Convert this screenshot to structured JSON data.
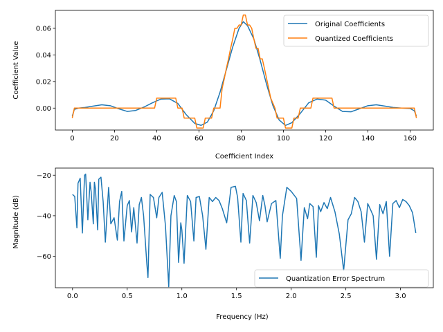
{
  "colors": {
    "blue": "#1f77b4",
    "orange": "#ff7f0e"
  },
  "chart_data": [
    {
      "type": "line",
      "xlabel": "Coefficient Index",
      "ylabel": "Coefficient Value",
      "xlim": [
        -8,
        171
      ],
      "ylim": [
        -0.0165,
        0.0735
      ],
      "xticks": [
        0,
        20,
        40,
        60,
        80,
        100,
        120,
        140,
        160
      ],
      "xtick_labels": [
        "0",
        "20",
        "40",
        "60",
        "80",
        "100",
        "120",
        "140",
        "160"
      ],
      "yticks": [
        0.0,
        0.02,
        0.04,
        0.06
      ],
      "ytick_labels": [
        "0.00",
        "0.02",
        "0.04",
        "0.06"
      ],
      "legend": {
        "placement": "top-right",
        "entries": [
          "Original Coefficients",
          "Quantized Coefficients"
        ]
      },
      "series": [
        {
          "name": "Original Coefficients",
          "color": "#1f77b4",
          "x": [
            0,
            1,
            3,
            6,
            10,
            14,
            18,
            22,
            26,
            30,
            34,
            38,
            42,
            46,
            50,
            54,
            58,
            61,
            64,
            67,
            70,
            73,
            76,
            79,
            81,
            83,
            86,
            89,
            92,
            95,
            98,
            101,
            104,
            108,
            112,
            116,
            120,
            124,
            128,
            132,
            136,
            140,
            144,
            148,
            152,
            156,
            160,
            162,
            163
          ],
          "y": [
            -0.006,
            -0.001,
            0.0,
            0.0005,
            0.0015,
            0.0025,
            0.0018,
            -0.0005,
            -0.0025,
            -0.0018,
            0.0008,
            0.004,
            0.0068,
            0.007,
            0.0035,
            -0.005,
            -0.0115,
            -0.013,
            -0.0105,
            -0.002,
            0.012,
            0.029,
            0.046,
            0.06,
            0.065,
            0.062,
            0.052,
            0.036,
            0.018,
            0.002,
            -0.009,
            -0.013,
            -0.011,
            -0.004,
            0.004,
            0.0068,
            0.006,
            0.0015,
            -0.0025,
            -0.0028,
            -0.0005,
            0.0018,
            0.0025,
            0.0015,
            0.0005,
            0.0,
            -0.0003,
            -0.002,
            -0.006
          ]
        },
        {
          "name": "Quantized Coefficients",
          "color": "#ff7f0e",
          "x": [
            0,
            1,
            39,
            40,
            49,
            50,
            52,
            53,
            55,
            56,
            58,
            59,
            62,
            63,
            66,
            67,
            70,
            71,
            72,
            73,
            74,
            75,
            76,
            77,
            78,
            79,
            80,
            81,
            82,
            83,
            84,
            85,
            86,
            87,
            88,
            89,
            90,
            91,
            93,
            94,
            96,
            97,
            100,
            101,
            104,
            105,
            107,
            108,
            110,
            111,
            113,
            114,
            123,
            124,
            162,
            163
          ],
          "y": [
            -0.0075,
            0.0,
            0.0,
            0.0075,
            0.0075,
            0.0,
            0.0,
            -0.0075,
            -0.0075,
            -0.0075,
            -0.0075,
            -0.015,
            -0.015,
            -0.0075,
            -0.0075,
            0.0,
            0.0,
            0.015,
            0.022,
            0.03,
            0.037,
            0.045,
            0.052,
            0.06,
            0.06,
            0.0625,
            0.0625,
            0.07,
            0.07,
            0.0625,
            0.0625,
            0.06,
            0.052,
            0.045,
            0.045,
            0.037,
            0.037,
            0.03,
            0.015,
            0.0075,
            0.0,
            -0.0075,
            -0.0075,
            -0.015,
            -0.015,
            -0.0075,
            -0.0075,
            0.0,
            0.0,
            0.0,
            0.0,
            0.0075,
            0.0075,
            0.0,
            0.0,
            -0.0075
          ]
        }
      ]
    },
    {
      "type": "line",
      "xlabel": "Frequency (Hz)",
      "ylabel": "Magnitude (dB)",
      "xlim": [
        -0.157,
        3.3
      ],
      "ylim": [
        -75.5,
        -16.5
      ],
      "xticks": [
        0.0,
        0.5,
        1.0,
        1.5,
        2.0,
        2.5,
        3.0
      ],
      "xtick_labels": [
        "0.0",
        "0.5",
        "1.0",
        "1.5",
        "2.0",
        "2.5",
        "3.0"
      ],
      "yticks": [
        -60,
        -40,
        -20
      ],
      "ytick_labels": [
        "−60",
        "−40",
        "−20"
      ],
      "legend": {
        "placement": "lower-right",
        "entries": [
          "Quantization Error Spectrum"
        ]
      },
      "series": [
        {
          "name": "Quantization Error Spectrum",
          "color": "#1f77b4",
          "x": [
            0.0,
            0.02,
            0.04,
            0.05,
            0.07,
            0.09,
            0.11,
            0.12,
            0.14,
            0.16,
            0.17,
            0.19,
            0.2,
            0.21,
            0.23,
            0.24,
            0.26,
            0.28,
            0.3,
            0.33,
            0.35,
            0.38,
            0.41,
            0.43,
            0.45,
            0.47,
            0.5,
            0.52,
            0.54,
            0.56,
            0.59,
            0.61,
            0.63,
            0.65,
            0.68,
            0.69,
            0.71,
            0.74,
            0.77,
            0.79,
            0.82,
            0.85,
            0.88,
            0.9,
            0.93,
            0.95,
            0.97,
            0.99,
            1.0,
            1.02,
            1.05,
            1.08,
            1.11,
            1.13,
            1.16,
            1.19,
            1.22,
            1.25,
            1.28,
            1.31,
            1.34,
            1.37,
            1.41,
            1.45,
            1.49,
            1.51,
            1.54,
            1.56,
            1.59,
            1.62,
            1.65,
            1.68,
            1.71,
            1.74,
            1.76,
            1.78,
            1.82,
            1.86,
            1.9,
            1.92,
            1.96,
            2.0,
            2.05,
            2.09,
            2.12,
            2.15,
            2.17,
            2.2,
            2.23,
            2.25,
            2.27,
            2.3,
            2.33,
            2.36,
            2.4,
            2.44,
            2.48,
            2.52,
            2.55,
            2.58,
            2.61,
            2.64,
            2.67,
            2.7,
            2.73,
            2.75,
            2.78,
            2.81,
            2.84,
            2.87,
            2.9,
            2.93,
            2.96,
            2.99,
            3.02,
            3.05,
            3.08,
            3.11,
            3.14
          ],
          "y": [
            -29.5,
            -30.5,
            -46.0,
            -24.0,
            -21.5,
            -48.5,
            -20.0,
            -19.5,
            -42.0,
            -23.5,
            -28.0,
            -44.0,
            -23.5,
            -27.0,
            -47.0,
            -22.0,
            -21.0,
            -33.0,
            -53.0,
            -26.0,
            -44.0,
            -41.0,
            -52.0,
            -33.0,
            -28.0,
            -52.5,
            -35.0,
            -32.5,
            -48.0,
            -36.0,
            -53.5,
            -34.5,
            -31.0,
            -40.0,
            -64.0,
            -70.5,
            -29.5,
            -31.0,
            -41.0,
            -31.0,
            -28.5,
            -45.0,
            -75.0,
            -40.0,
            -30.0,
            -33.0,
            -63.0,
            -43.5,
            -47.0,
            -63.5,
            -30.0,
            -33.0,
            -52.5,
            -31.0,
            -30.5,
            -40.0,
            -56.5,
            -31.0,
            -33.0,
            -31.0,
            -32.5,
            -36.5,
            -43.5,
            -26.0,
            -25.5,
            -31.0,
            -53.0,
            -29.0,
            -32.5,
            -53.5,
            -30.0,
            -33.5,
            -42.5,
            -30.0,
            -35.0,
            -43.0,
            -34.0,
            -32.5,
            -61.0,
            -40.0,
            -26.0,
            -28.0,
            -31.5,
            -62.0,
            -36.0,
            -41.5,
            -34.0,
            -35.5,
            -60.5,
            -35.0,
            -38.0,
            -33.5,
            -36.5,
            -31.0,
            -38.0,
            -49.0,
            -67.0,
            -42.0,
            -39.0,
            -31.0,
            -33.0,
            -38.0,
            -53.0,
            -34.0,
            -37.5,
            -40.0,
            -61.5,
            -34.5,
            -39.0,
            -33.0,
            -60.0,
            -34.0,
            -32.5,
            -36.0,
            -32.0,
            -33.0,
            -35.0,
            -38.5,
            -48.5
          ]
        }
      ]
    }
  ]
}
